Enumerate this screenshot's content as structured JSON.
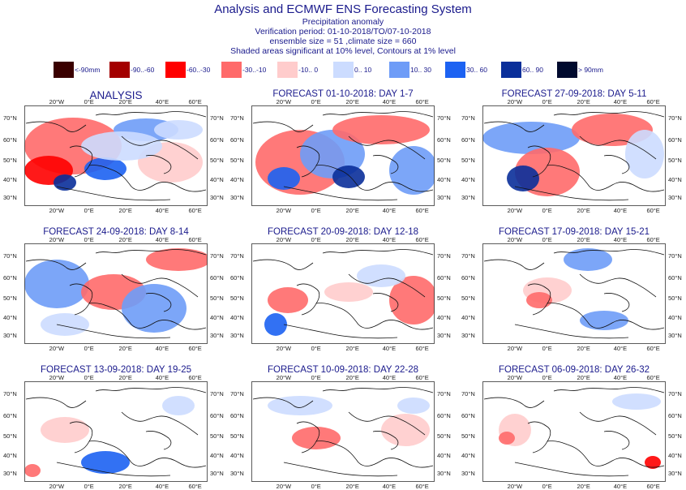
{
  "header": {
    "title": "Analysis and ECMWF ENS Forecasting System",
    "subtitle": "Precipitation anomaly",
    "verification": "Verification period: 01-10-2018/TO/07-10-2018",
    "ensemble": "ensemble size = 51  ,climate size = 660",
    "shading_note": "Shaded areas significant at 10% level, Contours at 1% level"
  },
  "legend": [
    {
      "label": "<-90mm",
      "color": "#3a0000"
    },
    {
      "label": "-90..-60",
      "color": "#a30000"
    },
    {
      "label": "-60..-30",
      "color": "#ff0000"
    },
    {
      "label": "-30..-10",
      "color": "#ff6a6a"
    },
    {
      "label": "-10.. 0",
      "color": "#ffcccc"
    },
    {
      "label": "0.. 10",
      "color": "#ccdcff"
    },
    {
      "label": "10.. 30",
      "color": "#6e9cf7"
    },
    {
      "label": "30.. 60",
      "color": "#1c62f2"
    },
    {
      "label": "60.. 90",
      "color": "#0a2f9a"
    },
    {
      "label": "> 90mm",
      "color": "#000a2e"
    }
  ],
  "axes": {
    "lon_labels": [
      "20°W",
      "0°E",
      "20°E",
      "40°E",
      "60°E"
    ],
    "lat_labels": [
      "70°N",
      "60°N",
      "50°N",
      "40°N",
      "30°N"
    ]
  },
  "panels": [
    {
      "title": "ANALYSIS",
      "big": true
    },
    {
      "title": "FORECAST 01-10-2018: DAY 1-7"
    },
    {
      "title": "FORECAST 27-09-2018: DAY 5-11"
    },
    {
      "title": "FORECAST 24-09-2018: DAY 8-14"
    },
    {
      "title": "FORECAST 20-09-2018: DAY 12-18"
    },
    {
      "title": "FORECAST 17-09-2018: DAY 15-21"
    },
    {
      "title": "FORECAST 13-09-2018: DAY 19-25"
    },
    {
      "title": "FORECAST 10-09-2018: DAY 22-28"
    },
    {
      "title": "FORECAST 06-09-2018: DAY 26-32"
    }
  ]
}
